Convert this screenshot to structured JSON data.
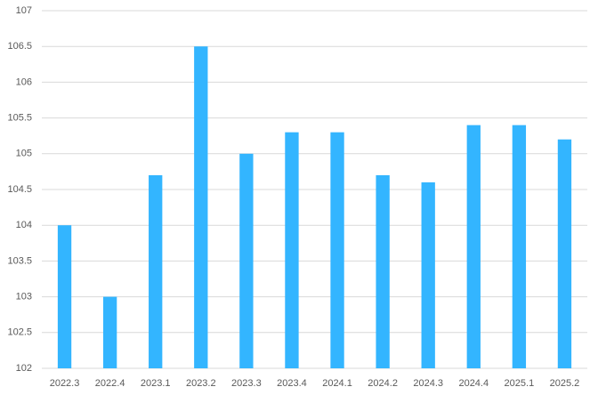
{
  "chart_data": {
    "type": "bar",
    "categories": [
      "2022.3",
      "2022.4",
      "2023.1",
      "2023.2",
      "2023.3",
      "2023.4",
      "2024.1",
      "2024.2",
      "2024.3",
      "2024.4",
      "2025.1",
      "2025.2"
    ],
    "values": [
      104,
      103,
      104.7,
      106.5,
      105,
      105.3,
      105.3,
      104.7,
      104.6,
      105.4,
      105.4,
      105.2
    ],
    "color": "#33b5ff",
    "ylim": [
      102,
      107
    ],
    "yticks": [
      102,
      102.5,
      103,
      103.5,
      104,
      104.5,
      105,
      105.5,
      106,
      106.5,
      107
    ],
    "grid": true
  }
}
